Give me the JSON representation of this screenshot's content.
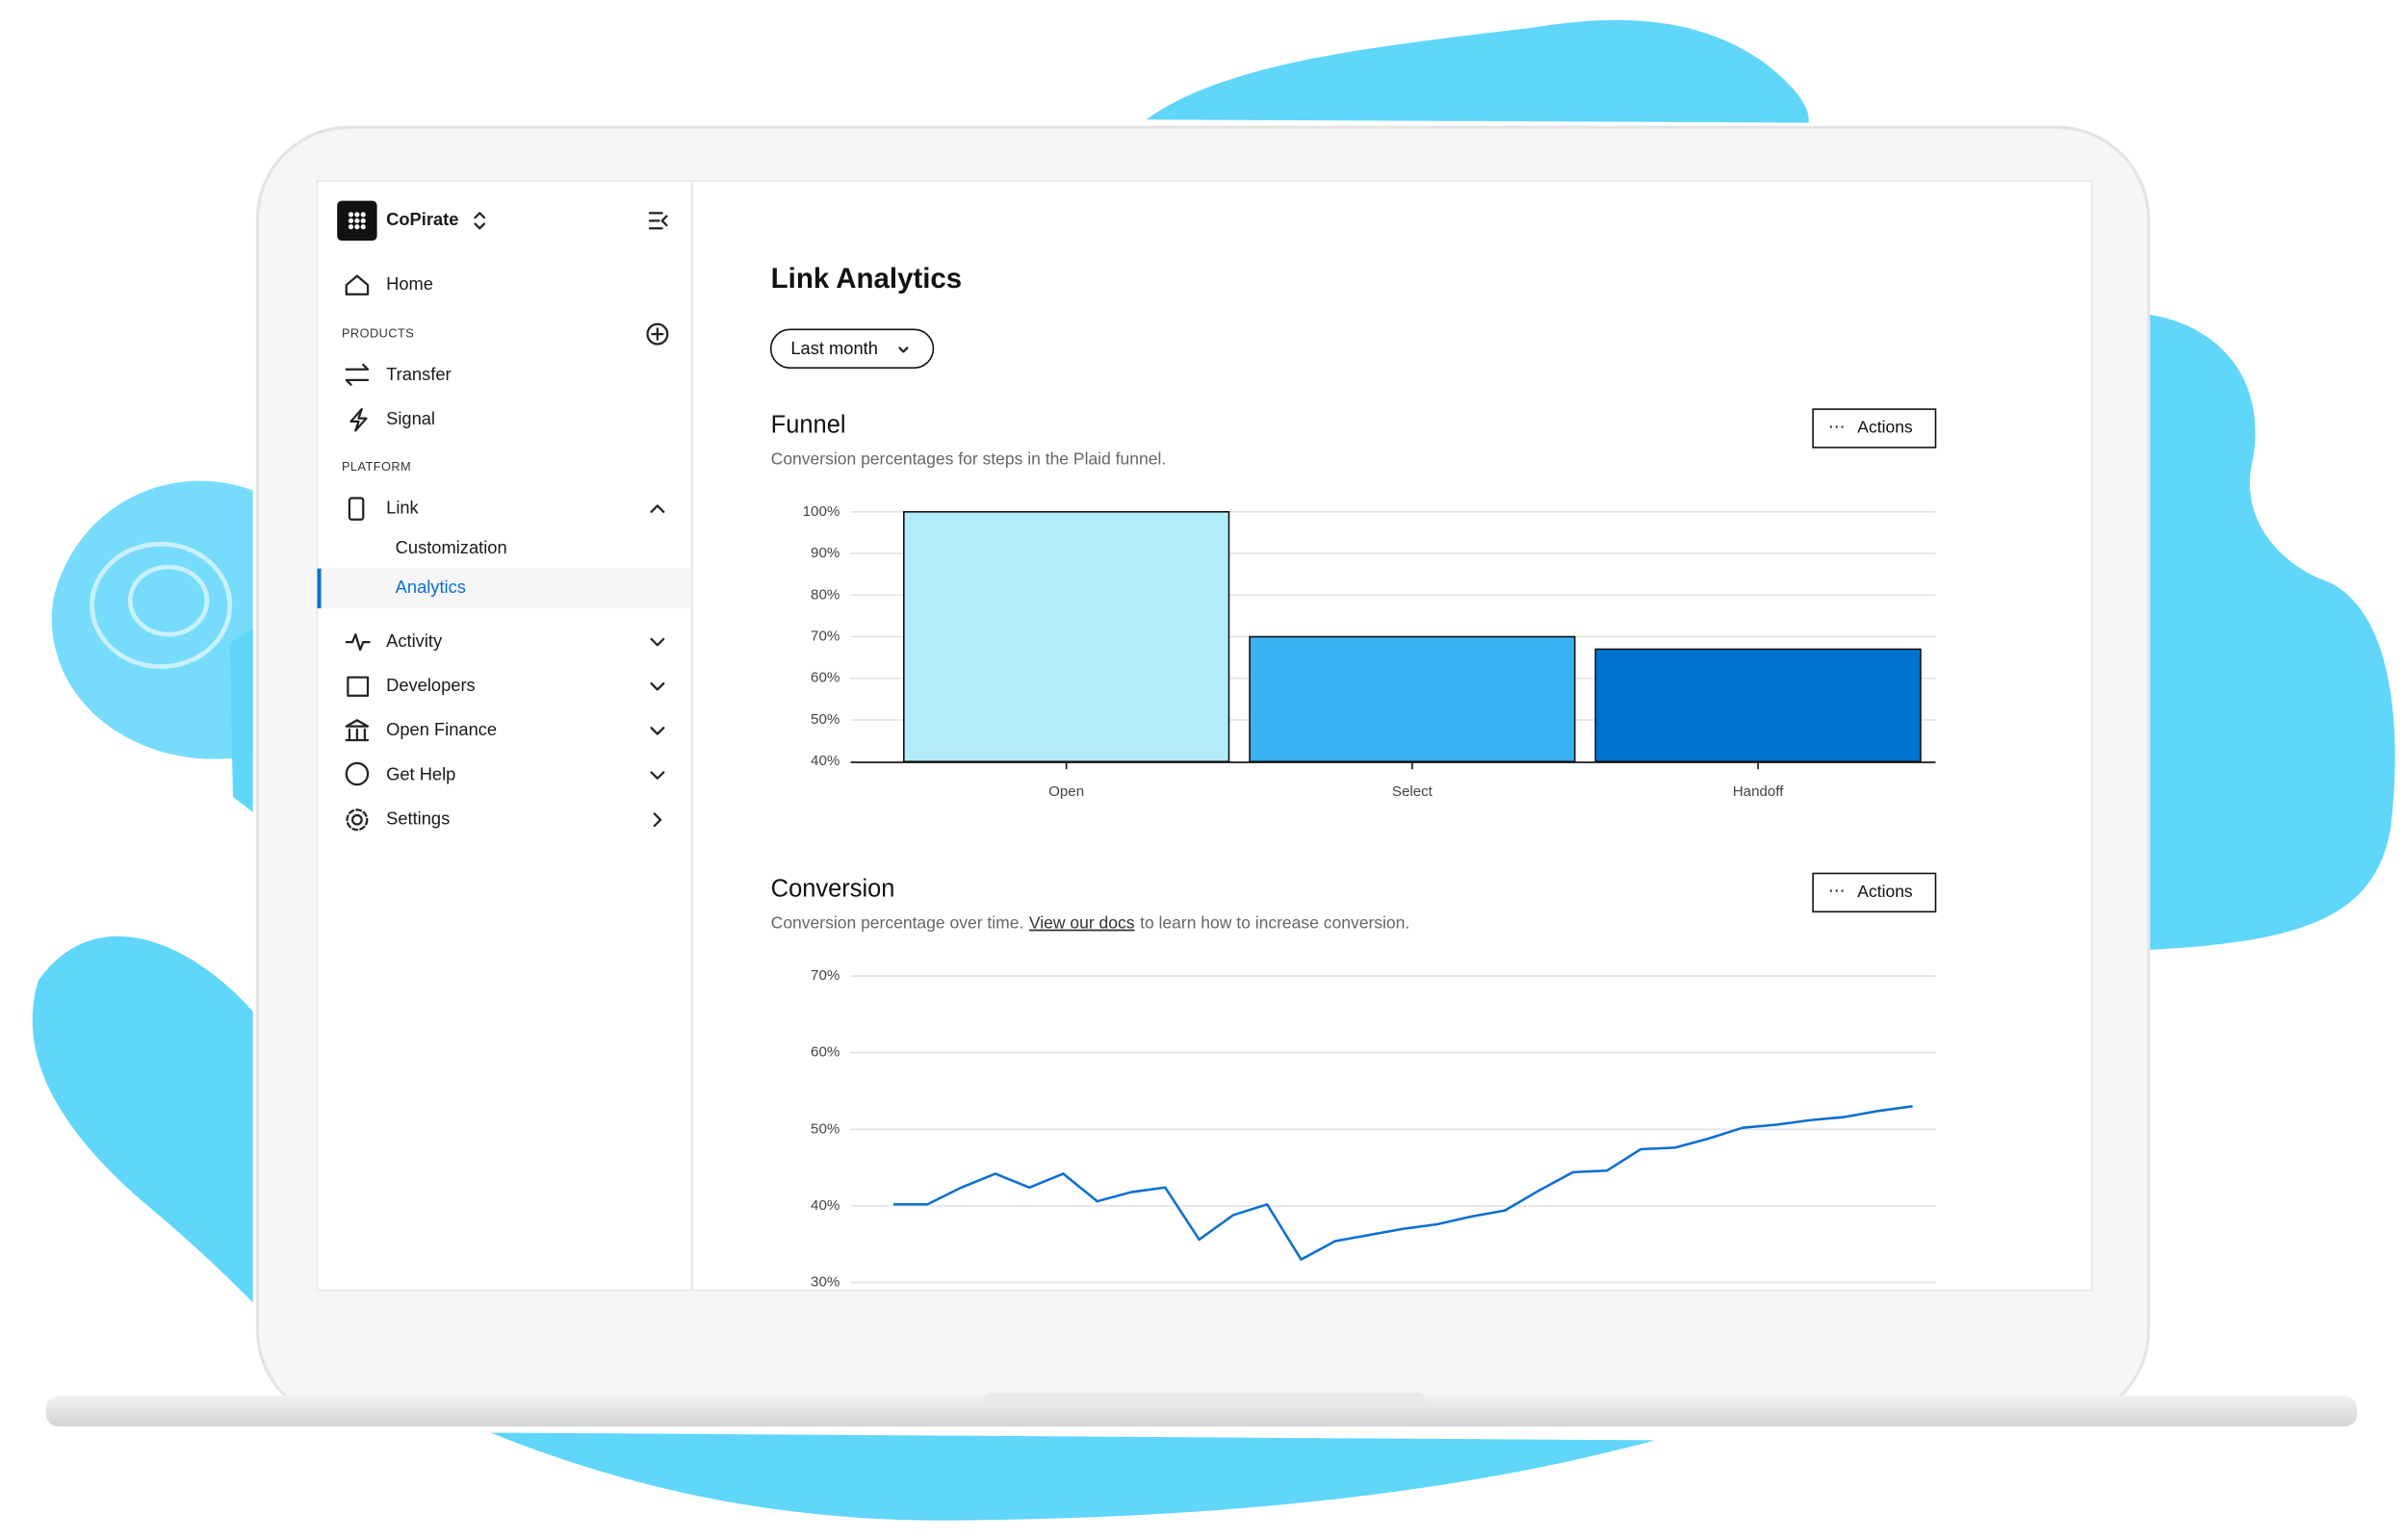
{
  "sidebar": {
    "org": "CoPirate",
    "home": "Home",
    "products_heading": "PRODUCTS",
    "products": [
      "Transfer",
      "Signal"
    ],
    "platform_heading": "PLATFORM",
    "link": "Link",
    "link_children": [
      "Customization",
      "Analytics"
    ],
    "more": [
      "Activity",
      "Developers",
      "Open Finance",
      "Get Help",
      "Settings"
    ]
  },
  "main": {
    "title": "Link Analytics",
    "filter": "Last month"
  },
  "chart_data": [
    {
      "type": "bar",
      "title": "Funnel",
      "subtitle": [
        "Conversion percentages for steps in the Plaid funnel."
      ],
      "actions": "Actions",
      "categories": [
        "Open",
        "Select",
        "Handoff"
      ],
      "values": [
        100,
        70,
        67
      ],
      "colors": [
        "#b3ecf9",
        "#38b2f2",
        "#0073d1"
      ],
      "ylim": [
        40,
        100
      ],
      "yticks": [
        {
          "value": 40,
          "label": "40%"
        },
        {
          "value": 50,
          "label": "50%"
        },
        {
          "value": 60,
          "label": "60%"
        },
        {
          "value": 70,
          "label": "70%"
        },
        {
          "value": 80,
          "label": "80%"
        },
        {
          "value": 90,
          "label": "90%"
        },
        {
          "value": 100,
          "label": "100%"
        }
      ],
      "grid": true
    },
    {
      "type": "line",
      "title": "Conversion",
      "subtitle": [
        "Conversion percentage over time.",
        "View our docs",
        "to learn how to increase conversion."
      ],
      "actions": "Actions",
      "color": "#0a6fd1",
      "values": [
        40.2,
        40.2,
        42.4,
        44.2,
        42.4,
        44.2,
        40.6,
        41.8,
        42.4,
        35.6,
        38.8,
        40.2,
        33,
        35.4,
        36.2,
        37,
        37.6,
        38.6,
        39.4,
        42,
        44.4,
        44.6,
        47.4,
        47.6,
        48.8,
        50.2,
        50.6,
        51.2,
        51.6,
        52.4,
        53
      ],
      "ylim": [
        30,
        70
      ],
      "yticks": [
        {
          "value": 30,
          "label": "30%"
        },
        {
          "value": 40,
          "label": "40%"
        },
        {
          "value": 50,
          "label": "50%"
        },
        {
          "value": 60,
          "label": "60%"
        },
        {
          "value": 70,
          "label": "70%"
        }
      ],
      "grid": true
    }
  ]
}
